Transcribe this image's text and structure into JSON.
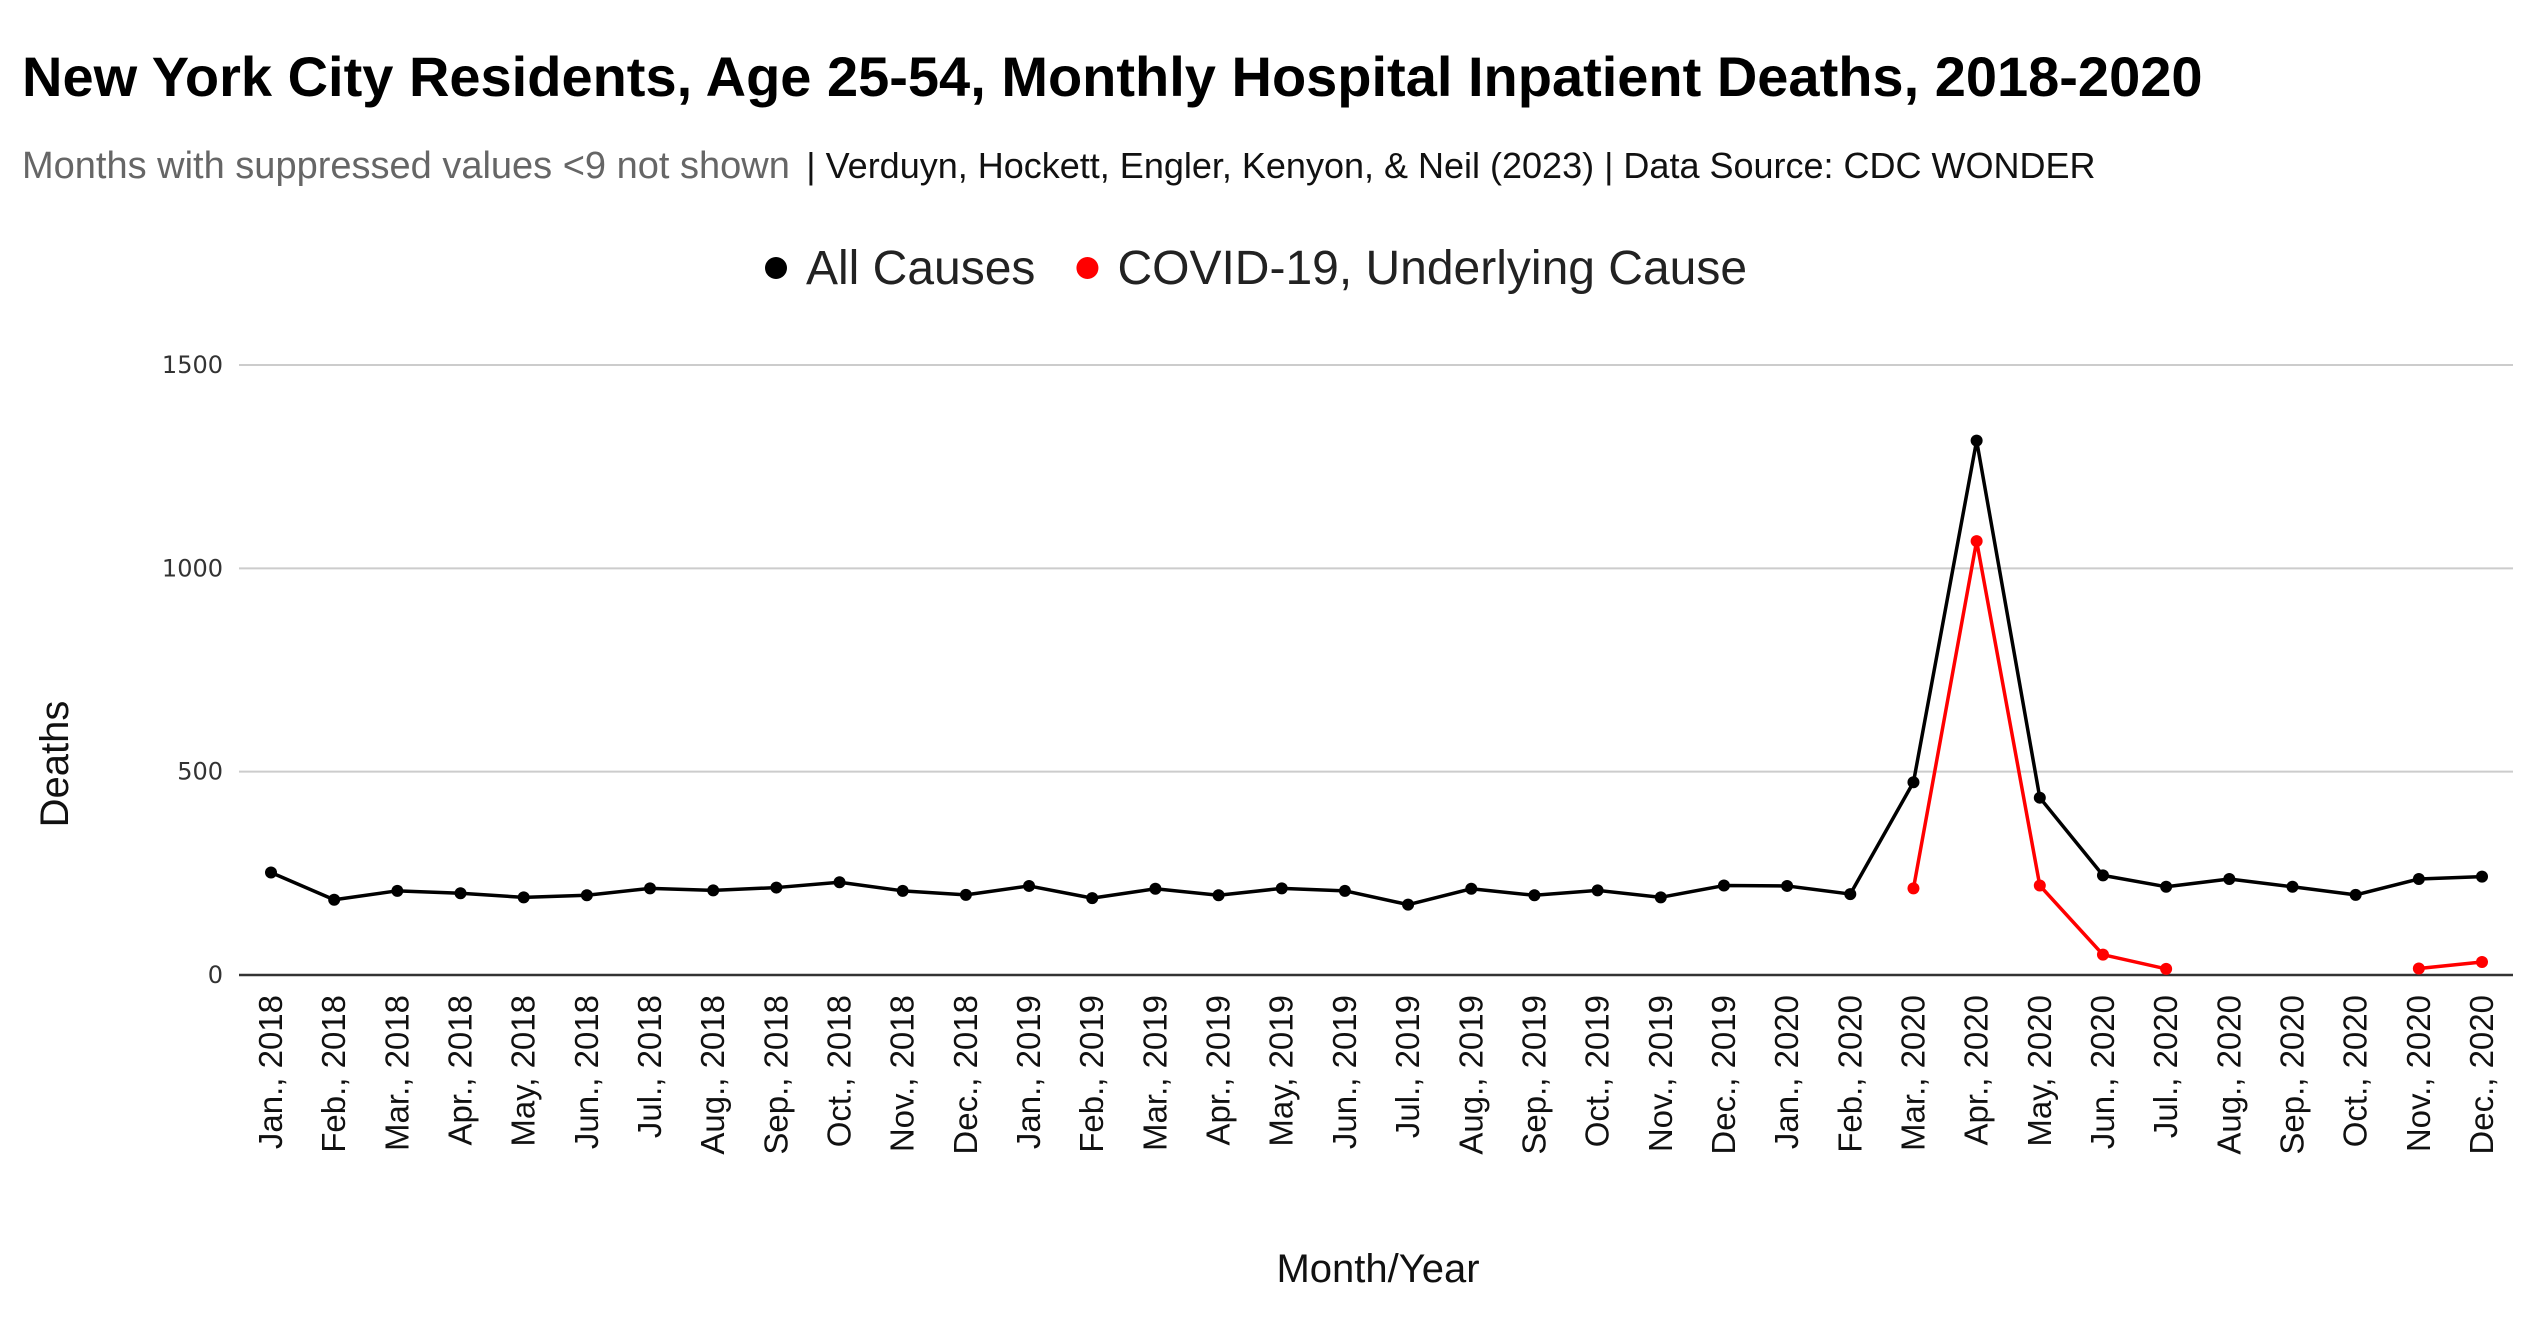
{
  "chart_data": {
    "type": "line",
    "title": "New York City Residents, Age 25-54, Monthly Hospital Inpatient Deaths, 2018-2020",
    "subtitle_note": "Months with suppressed values <9 not shown",
    "subtitle_source": "| Verduyn, Hockett, Engler, Kenyon, & Neil (2023) | Data Source: CDC WONDER",
    "xlabel": "Month/Year",
    "ylabel": "Deaths",
    "ylim": [
      0,
      1500
    ],
    "yticks": [
      0,
      500,
      1000,
      1500
    ],
    "grid": true,
    "legend_position": "top-center",
    "categories": [
      "Jan., 2018",
      "Feb., 2018",
      "Mar., 2018",
      "Apr., 2018",
      "May, 2018",
      "Jun., 2018",
      "Jul., 2018",
      "Aug., 2018",
      "Sep., 2018",
      "Oct., 2018",
      "Nov., 2018",
      "Dec., 2018",
      "Jan., 2019",
      "Feb., 2019",
      "Mar., 2019",
      "Apr., 2019",
      "May, 2019",
      "Jun., 2019",
      "Jul., 2019",
      "Aug., 2019",
      "Sep., 2019",
      "Oct., 2019",
      "Nov., 2019",
      "Dec., 2019",
      "Jan., 2020",
      "Feb., 2020",
      "Mar., 2020",
      "Apr., 2020",
      "May, 2020",
      "Jun., 2020",
      "Jul., 2020",
      "Aug., 2020",
      "Sep., 2020",
      "Oct., 2020",
      "Nov., 2020",
      "Dec., 2020"
    ],
    "series": [
      {
        "name": "All Causes",
        "color": "#000000",
        "values": [
          252,
          185,
          207,
          201,
          191,
          196,
          213,
          208,
          215,
          228,
          207,
          197,
          219,
          189,
          212,
          196,
          213,
          207,
          173,
          212,
          196,
          208,
          191,
          220,
          219,
          199,
          474,
          1314,
          436,
          245,
          217,
          236,
          217,
          197,
          236,
          242
        ]
      },
      {
        "name": "COVID-19, Underlying Cause",
        "color": "#ff0000",
        "values": [
          null,
          null,
          null,
          null,
          null,
          null,
          null,
          null,
          null,
          null,
          null,
          null,
          null,
          null,
          null,
          null,
          null,
          null,
          null,
          null,
          null,
          null,
          null,
          null,
          null,
          null,
          213,
          1067,
          220,
          50,
          15,
          null,
          null,
          null,
          16,
          32
        ]
      }
    ]
  }
}
